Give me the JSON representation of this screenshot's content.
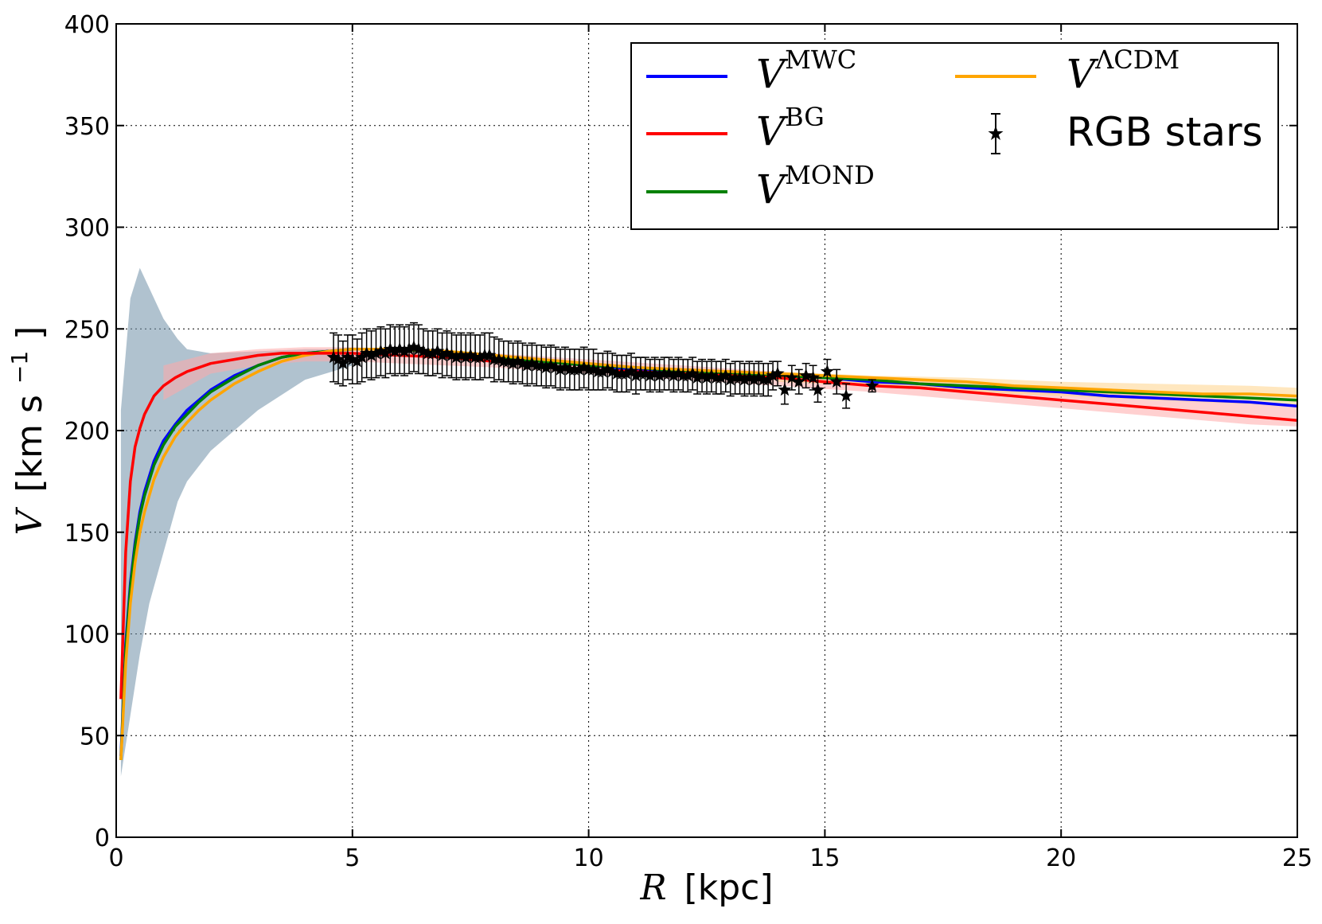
{
  "chart_data": {
    "type": "line",
    "xlabel": {
      "symbol": "R",
      "unit": "[kpc]"
    },
    "ylabel": {
      "symbol": "V",
      "unit_open": "[km s",
      "unit_exp": "−1",
      "unit_close": "]"
    },
    "xlim": [
      0,
      25
    ],
    "ylim": [
      0,
      400
    ],
    "xticks": [
      0,
      5,
      10,
      15,
      20,
      25
    ],
    "yticks": [
      0,
      50,
      100,
      150,
      200,
      250,
      300,
      350,
      400
    ],
    "grid": true,
    "legend": {
      "position": "top-right",
      "entries": [
        {
          "sym": "V",
          "sup": "MWC",
          "color": "#0000ff",
          "kind": "line"
        },
        {
          "sym": "V",
          "sup": "BG",
          "color": "#ff0000",
          "kind": "line"
        },
        {
          "sym": "V",
          "sup": "MOND",
          "color": "#008000",
          "kind": "line"
        },
        {
          "sym": "V",
          "sup": "ΛCDM",
          "color": "#ffa500",
          "kind": "line"
        },
        {
          "label": "RGB stars",
          "color": "#000000",
          "kind": "marker"
        }
      ]
    },
    "series": [
      {
        "name": "V^MWC",
        "color": "#0000ff",
        "x": [
          0.1,
          0.2,
          0.3,
          0.4,
          0.5,
          0.6,
          0.8,
          1.0,
          1.25,
          1.5,
          1.75,
          2.0,
          2.5,
          3.0,
          3.5,
          4.0,
          4.5,
          5,
          6,
          7,
          8,
          9,
          10,
          11,
          12,
          13,
          14,
          15,
          16,
          17,
          18,
          19,
          20,
          21,
          22,
          23,
          24,
          25
        ],
        "values": [
          40,
          95,
          125,
          145,
          160,
          170,
          185,
          195,
          203,
          210,
          215,
          220,
          227,
          232,
          236,
          238,
          239,
          240,
          240,
          238,
          236,
          234,
          232,
          230,
          229,
          228,
          227,
          226,
          224,
          223,
          221,
          220,
          219,
          217,
          216,
          215,
          214,
          212
        ]
      },
      {
        "name": "V^BG",
        "color": "#ff0000",
        "x": [
          0.1,
          0.2,
          0.3,
          0.4,
          0.5,
          0.6,
          0.8,
          1.0,
          1.25,
          1.5,
          1.75,
          2.0,
          2.5,
          3.0,
          3.5,
          4.0,
          4.5,
          5,
          6,
          7,
          8,
          9,
          10,
          11,
          12,
          13,
          14,
          15,
          16,
          17,
          18,
          19,
          20,
          21,
          22,
          23,
          24,
          25
        ],
        "values": [
          68,
          140,
          175,
          192,
          201,
          208,
          217,
          222,
          226,
          229,
          231,
          233,
          235,
          237,
          238,
          238,
          238,
          238,
          237,
          236,
          234,
          232,
          230,
          229,
          228,
          227,
          226,
          224,
          222,
          221,
          219,
          217,
          215,
          213,
          211,
          209,
          207,
          205
        ]
      },
      {
        "name": "V^MOND",
        "color": "#008000",
        "x": [
          0.1,
          0.2,
          0.3,
          0.4,
          0.5,
          0.6,
          0.8,
          1.0,
          1.25,
          1.5,
          1.75,
          2.0,
          2.5,
          3.0,
          3.5,
          4.0,
          4.5,
          5,
          6,
          7,
          8,
          9,
          10,
          11,
          12,
          13,
          14,
          15,
          16,
          17,
          18,
          19,
          20,
          21,
          22,
          23,
          24,
          25
        ],
        "values": [
          38,
          92,
          123,
          143,
          158,
          168,
          183,
          193,
          202,
          208,
          214,
          219,
          226,
          232,
          236,
          238,
          239,
          240,
          240,
          238,
          236,
          234,
          232,
          231,
          229,
          228,
          227,
          226,
          225,
          223,
          222,
          221,
          220,
          219,
          218,
          217,
          216,
          215
        ]
      },
      {
        "name": "V^ΛCDM",
        "color": "#ffa500",
        "x": [
          0.1,
          0.2,
          0.3,
          0.4,
          0.5,
          0.6,
          0.8,
          1.0,
          1.25,
          1.5,
          1.75,
          2.0,
          2.5,
          3.0,
          3.5,
          4.0,
          4.5,
          5,
          6,
          7,
          8,
          9,
          10,
          11,
          12,
          13,
          14,
          15,
          16,
          17,
          18,
          19,
          20,
          21,
          22,
          23,
          24,
          25
        ],
        "values": [
          38,
          85,
          115,
          135,
          150,
          160,
          176,
          187,
          197,
          204,
          210,
          215,
          223,
          229,
          234,
          237,
          239,
          240,
          240,
          239,
          237,
          235,
          233,
          231,
          230,
          229,
          228,
          227,
          226,
          225,
          224,
          222,
          221,
          220,
          219,
          218,
          218,
          217
        ]
      }
    ],
    "bands": [
      {
        "name": "V^MWC band",
        "color": "#6f8fa8",
        "x": [
          0.1,
          0.3,
          0.5,
          0.7,
          1.0,
          1.3,
          1.5,
          2.0,
          3.0,
          4.0,
          5.0
        ],
        "lower": [
          30,
          60,
          90,
          115,
          140,
          165,
          175,
          190,
          210,
          225,
          232
        ],
        "upper": [
          210,
          265,
          280,
          270,
          255,
          245,
          240,
          238,
          239,
          240,
          240
        ]
      },
      {
        "name": "V^BG band",
        "color": "#ffaaaa",
        "x": [
          1.0,
          2.0,
          3.0,
          4.0,
          5.0,
          6,
          8,
          10,
          12,
          14,
          16,
          18,
          20,
          22,
          24,
          25
        ],
        "lower": [
          215,
          228,
          232,
          234,
          234,
          233,
          231,
          228,
          225,
          222,
          219,
          215,
          211,
          207,
          203,
          202
        ],
        "upper": [
          232,
          238,
          240,
          241,
          241,
          240,
          238,
          235,
          232,
          229,
          226,
          223,
          220,
          217,
          214,
          213
        ]
      },
      {
        "name": "V^ΛCDM band",
        "color": "#ffd38a",
        "x": [
          14,
          16,
          18,
          20,
          22,
          24,
          25
        ],
        "lower": [
          224,
          222,
          219,
          217,
          215,
          213,
          212
        ],
        "upper": [
          229,
          227,
          226,
          224,
          223,
          222,
          221
        ]
      }
    ],
    "rgb_stars": {
      "name": "RGB stars",
      "color": "#000000",
      "x": [
        4.6,
        4.7,
        4.8,
        4.9,
        5.0,
        5.1,
        5.2,
        5.3,
        5.4,
        5.5,
        5.6,
        5.7,
        5.8,
        5.9,
        6.0,
        6.1,
        6.2,
        6.3,
        6.4,
        6.5,
        6.6,
        6.7,
        6.8,
        6.9,
        7.0,
        7.1,
        7.2,
        7.3,
        7.4,
        7.5,
        7.6,
        7.7,
        7.8,
        7.9,
        8.0,
        8.1,
        8.2,
        8.3,
        8.4,
        8.5,
        8.6,
        8.7,
        8.8,
        8.9,
        9.0,
        9.1,
        9.2,
        9.3,
        9.4,
        9.5,
        9.6,
        9.7,
        9.8,
        9.9,
        10.0,
        10.1,
        10.2,
        10.3,
        10.4,
        10.5,
        10.6,
        10.7,
        10.8,
        10.9,
        11.0,
        11.1,
        11.2,
        11.3,
        11.4,
        11.5,
        11.6,
        11.7,
        11.8,
        11.9,
        12.0,
        12.1,
        12.2,
        12.3,
        12.4,
        12.5,
        12.6,
        12.7,
        12.8,
        12.9,
        13.0,
        13.1,
        13.2,
        13.3,
        13.4,
        13.5,
        13.6,
        13.7,
        13.8,
        13.9,
        14.0,
        14.15,
        14.3,
        14.45,
        14.6,
        14.75,
        14.85,
        15.05,
        15.25,
        15.45,
        16.0
      ],
      "values": [
        236,
        235,
        233,
        236,
        235,
        234,
        236,
        238,
        237,
        238,
        239,
        238,
        240,
        239,
        240,
        239,
        240,
        241,
        240,
        239,
        238,
        238,
        239,
        237,
        238,
        237,
        236,
        237,
        236,
        237,
        236,
        236,
        237,
        237,
        235,
        235,
        234,
        234,
        233,
        234,
        233,
        232,
        233,
        232,
        232,
        231,
        232,
        231,
        230,
        231,
        230,
        230,
        230,
        231,
        230,
        230,
        229,
        229,
        230,
        229,
        228,
        228,
        228,
        229,
        227,
        228,
        228,
        227,
        228,
        227,
        228,
        228,
        227,
        228,
        227,
        227,
        228,
        226,
        227,
        226,
        227,
        226,
        226,
        227,
        225,
        226,
        226,
        225,
        226,
        225,
        226,
        225,
        225,
        227,
        228,
        220,
        226,
        224,
        227,
        226,
        220,
        229,
        224,
        217,
        222
      ],
      "errors": [
        12,
        12,
        11,
        11,
        12,
        11,
        12,
        12,
        12,
        12,
        12,
        12,
        12,
        12,
        12,
        12,
        12,
        12,
        12,
        11,
        11,
        11,
        11,
        11,
        11,
        11,
        11,
        11,
        11,
        11,
        11,
        11,
        11,
        11,
        11,
        10,
        10,
        10,
        10,
        10,
        10,
        10,
        10,
        10,
        10,
        10,
        10,
        10,
        10,
        10,
        10,
        10,
        10,
        10,
        10,
        10,
        9,
        9,
        9,
        9,
        9,
        9,
        9,
        9,
        9,
        8,
        8,
        8,
        8,
        8,
        8,
        8,
        8,
        8,
        8,
        8,
        8,
        8,
        8,
        8,
        8,
        8,
        8,
        8,
        8,
        8,
        8,
        8,
        8,
        8,
        8,
        8,
        8,
        7,
        6,
        7,
        6,
        6,
        6,
        6,
        6,
        6,
        6,
        6,
        3
      ]
    }
  }
}
